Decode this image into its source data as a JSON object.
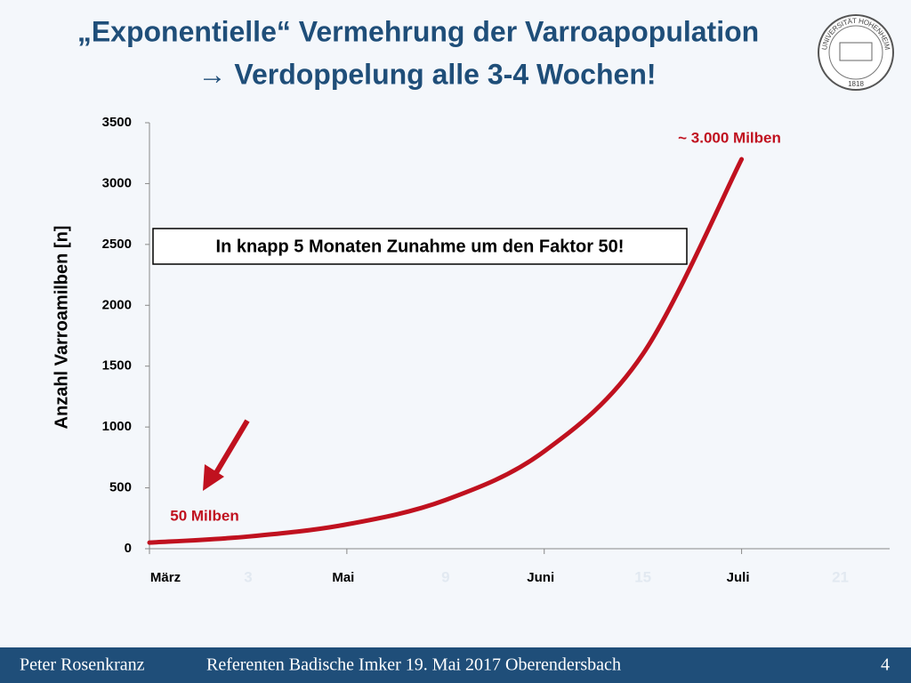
{
  "title_lines": [
    "„Exponentielle“ Vermehrung der Varroapopulation",
    "→ Verdoppelung alle 3-4 Wochen!"
  ],
  "logo": {
    "top_text": "UNIVERSITÄT HOHENHEIM",
    "year": "1818"
  },
  "chart_data": {
    "type": "line",
    "y_label": "Anzahl Varroamilben [n]",
    "x": [
      0,
      3,
      6,
      9,
      12,
      15,
      18
    ],
    "series": [
      {
        "name": "Varroamilben",
        "color": "#c0111f",
        "values": [
          50,
          100,
          200,
          400,
          800,
          1600,
          3200
        ]
      }
    ],
    "xlim": [
      0,
      22.5
    ],
    "xticks": [
      {
        "value": 0,
        "label": "März"
      },
      {
        "value": 6,
        "label": "Mai"
      },
      {
        "value": 12,
        "label": "Juni"
      },
      {
        "value": 18,
        "label": "Juli"
      }
    ],
    "week_ticks": [
      3,
      9,
      15,
      21
    ],
    "ylim": [
      0,
      3500
    ],
    "yticks": [
      0,
      500,
      1000,
      1500,
      2000,
      2500,
      3000,
      3500
    ],
    "annotations": [
      "~ 3.000 Milben",
      "50 Milben",
      "In knapp 5 Monaten Zunahme um den Faktor 50!"
    ]
  },
  "footer": {
    "author": "Peter Rosenkranz",
    "event": "Referenten Badische Imker 19. Mai 2017 Oberendersbach",
    "page": "4"
  }
}
